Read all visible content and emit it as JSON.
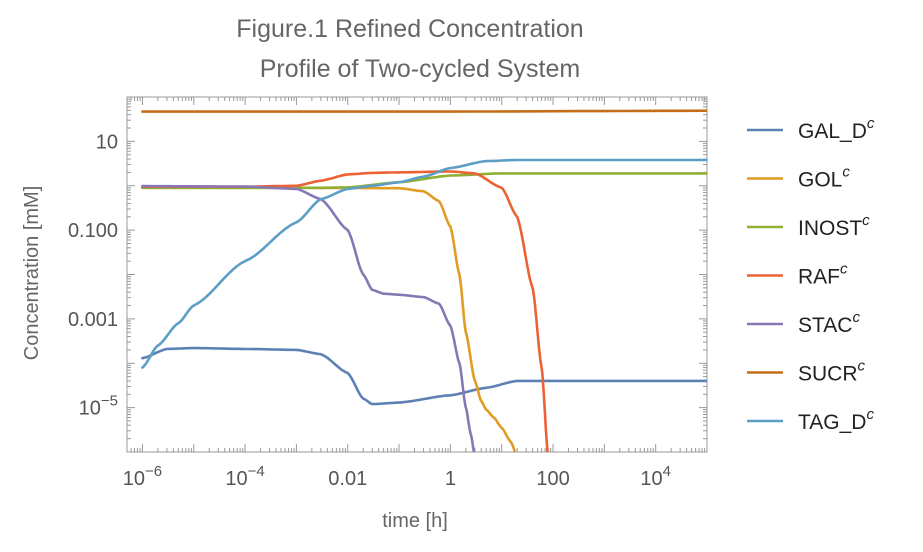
{
  "chart_data": {
    "type": "line",
    "title_lines": [
      "Figure.1 Refined Concentration",
      "Profile of Two-cycled System"
    ],
    "xlabel": "time [h]",
    "ylabel": "Concentration [mM]",
    "x_scale": "log",
    "y_scale": "log",
    "xlim": [
      5e-07,
      100000.0
    ],
    "ylim": [
      1e-06,
      100
    ],
    "x_ticks": [
      {
        "value": 1e-06,
        "mantissa": "10",
        "exp": "−6"
      },
      {
        "value": 0.0001,
        "mantissa": "10",
        "exp": "−4"
      },
      {
        "value": 0.01,
        "mantissa": "0.01",
        "exp": ""
      },
      {
        "value": 1,
        "mantissa": "1",
        "exp": ""
      },
      {
        "value": 100,
        "mantissa": "100",
        "exp": ""
      },
      {
        "value": 10000.0,
        "mantissa": "10",
        "exp": "4"
      }
    ],
    "y_ticks": [
      {
        "value": 10,
        "mantissa": "10",
        "exp": ""
      },
      {
        "value": 0.1,
        "mantissa": "0.100",
        "exp": ""
      },
      {
        "value": 0.001,
        "mantissa": "0.001",
        "exp": ""
      },
      {
        "value": 1e-05,
        "mantissa": "10",
        "exp": "−5"
      }
    ],
    "grid": false,
    "legend_position": "right",
    "series": [
      {
        "name": "GAL_D",
        "sup": "c",
        "color": "#5E81B5",
        "x": [
          1e-06,
          3e-06,
          1e-05,
          0.0001,
          0.001,
          0.003,
          0.01,
          0.02,
          0.03,
          0.1,
          1,
          5,
          20,
          100,
          10000.0,
          100000.0
        ],
        "y": [
          0.00013,
          0.00021,
          0.00022,
          0.00021,
          0.0002,
          0.00016,
          6e-05,
          1.6e-05,
          1.2e-05,
          1.3e-05,
          1.9e-05,
          2.8e-05,
          4e-05,
          4e-05,
          4e-05,
          4e-05
        ]
      },
      {
        "name": "GOL",
        "sup": "c",
        "color": "#E19C24",
        "x": [
          1e-06,
          0.001,
          0.1,
          0.3,
          0.6,
          1,
          1.5,
          2,
          3,
          4,
          5,
          7,
          10,
          15,
          20
        ],
        "y": [
          0.9,
          0.9,
          0.88,
          0.75,
          0.45,
          0.12,
          0.01,
          0.0005,
          4e-05,
          1.4e-05,
          9e-06,
          6e-06,
          3.5e-06,
          1.7e-06,
          8e-07
        ]
      },
      {
        "name": "INOST",
        "sup": "c",
        "color": "#8FB032",
        "x": [
          1e-06,
          0.003,
          0.01,
          0.1,
          1,
          10,
          100000.0
        ],
        "y": [
          0.9,
          0.9,
          0.92,
          1.2,
          1.7,
          1.9,
          1.9
        ]
      },
      {
        "name": "RAF",
        "sup": "c",
        "color": "#EB6235",
        "x": [
          1e-06,
          0.0001,
          0.001,
          0.003,
          0.01,
          0.03,
          0.1,
          1,
          3,
          10,
          20,
          40,
          60,
          80
        ],
        "y": [
          0.95,
          0.95,
          1.0,
          1.3,
          1.8,
          1.95,
          2.0,
          2.1,
          1.9,
          0.9,
          0.2,
          0.005,
          8e-05,
          8e-07
        ]
      },
      {
        "name": "STAC",
        "sup": "c",
        "color": "#8778B3",
        "x": [
          1e-06,
          0.0001,
          0.001,
          0.003,
          0.01,
          0.02,
          0.03,
          0.05,
          0.1,
          0.3,
          0.6,
          1,
          1.5,
          2,
          2.5,
          3
        ],
        "y": [
          0.98,
          0.96,
          0.85,
          0.5,
          0.1,
          0.01,
          0.0045,
          0.0037,
          0.0035,
          0.0031,
          0.0022,
          0.0007,
          0.0001,
          1e-05,
          2.5e-06,
          8e-07
        ]
      },
      {
        "name": "SUCR",
        "sup": "c",
        "color": "#C56E1A",
        "x": [
          1e-06,
          1,
          100000.0
        ],
        "y": [
          47,
          47,
          49
        ]
      },
      {
        "name": "TAG_D",
        "sup": "c",
        "color": "#5D9EC7",
        "x": [
          1e-06,
          2e-06,
          5e-06,
          1e-05,
          0.0001,
          0.001,
          0.003,
          0.01,
          0.03,
          0.1,
          0.3,
          1,
          5,
          20,
          100000.0
        ],
        "y": [
          8e-05,
          0.00025,
          0.0008,
          0.002,
          0.02,
          0.15,
          0.5,
          0.85,
          1.0,
          1.2,
          1.6,
          2.5,
          3.6,
          3.8,
          3.8
        ]
      }
    ]
  }
}
